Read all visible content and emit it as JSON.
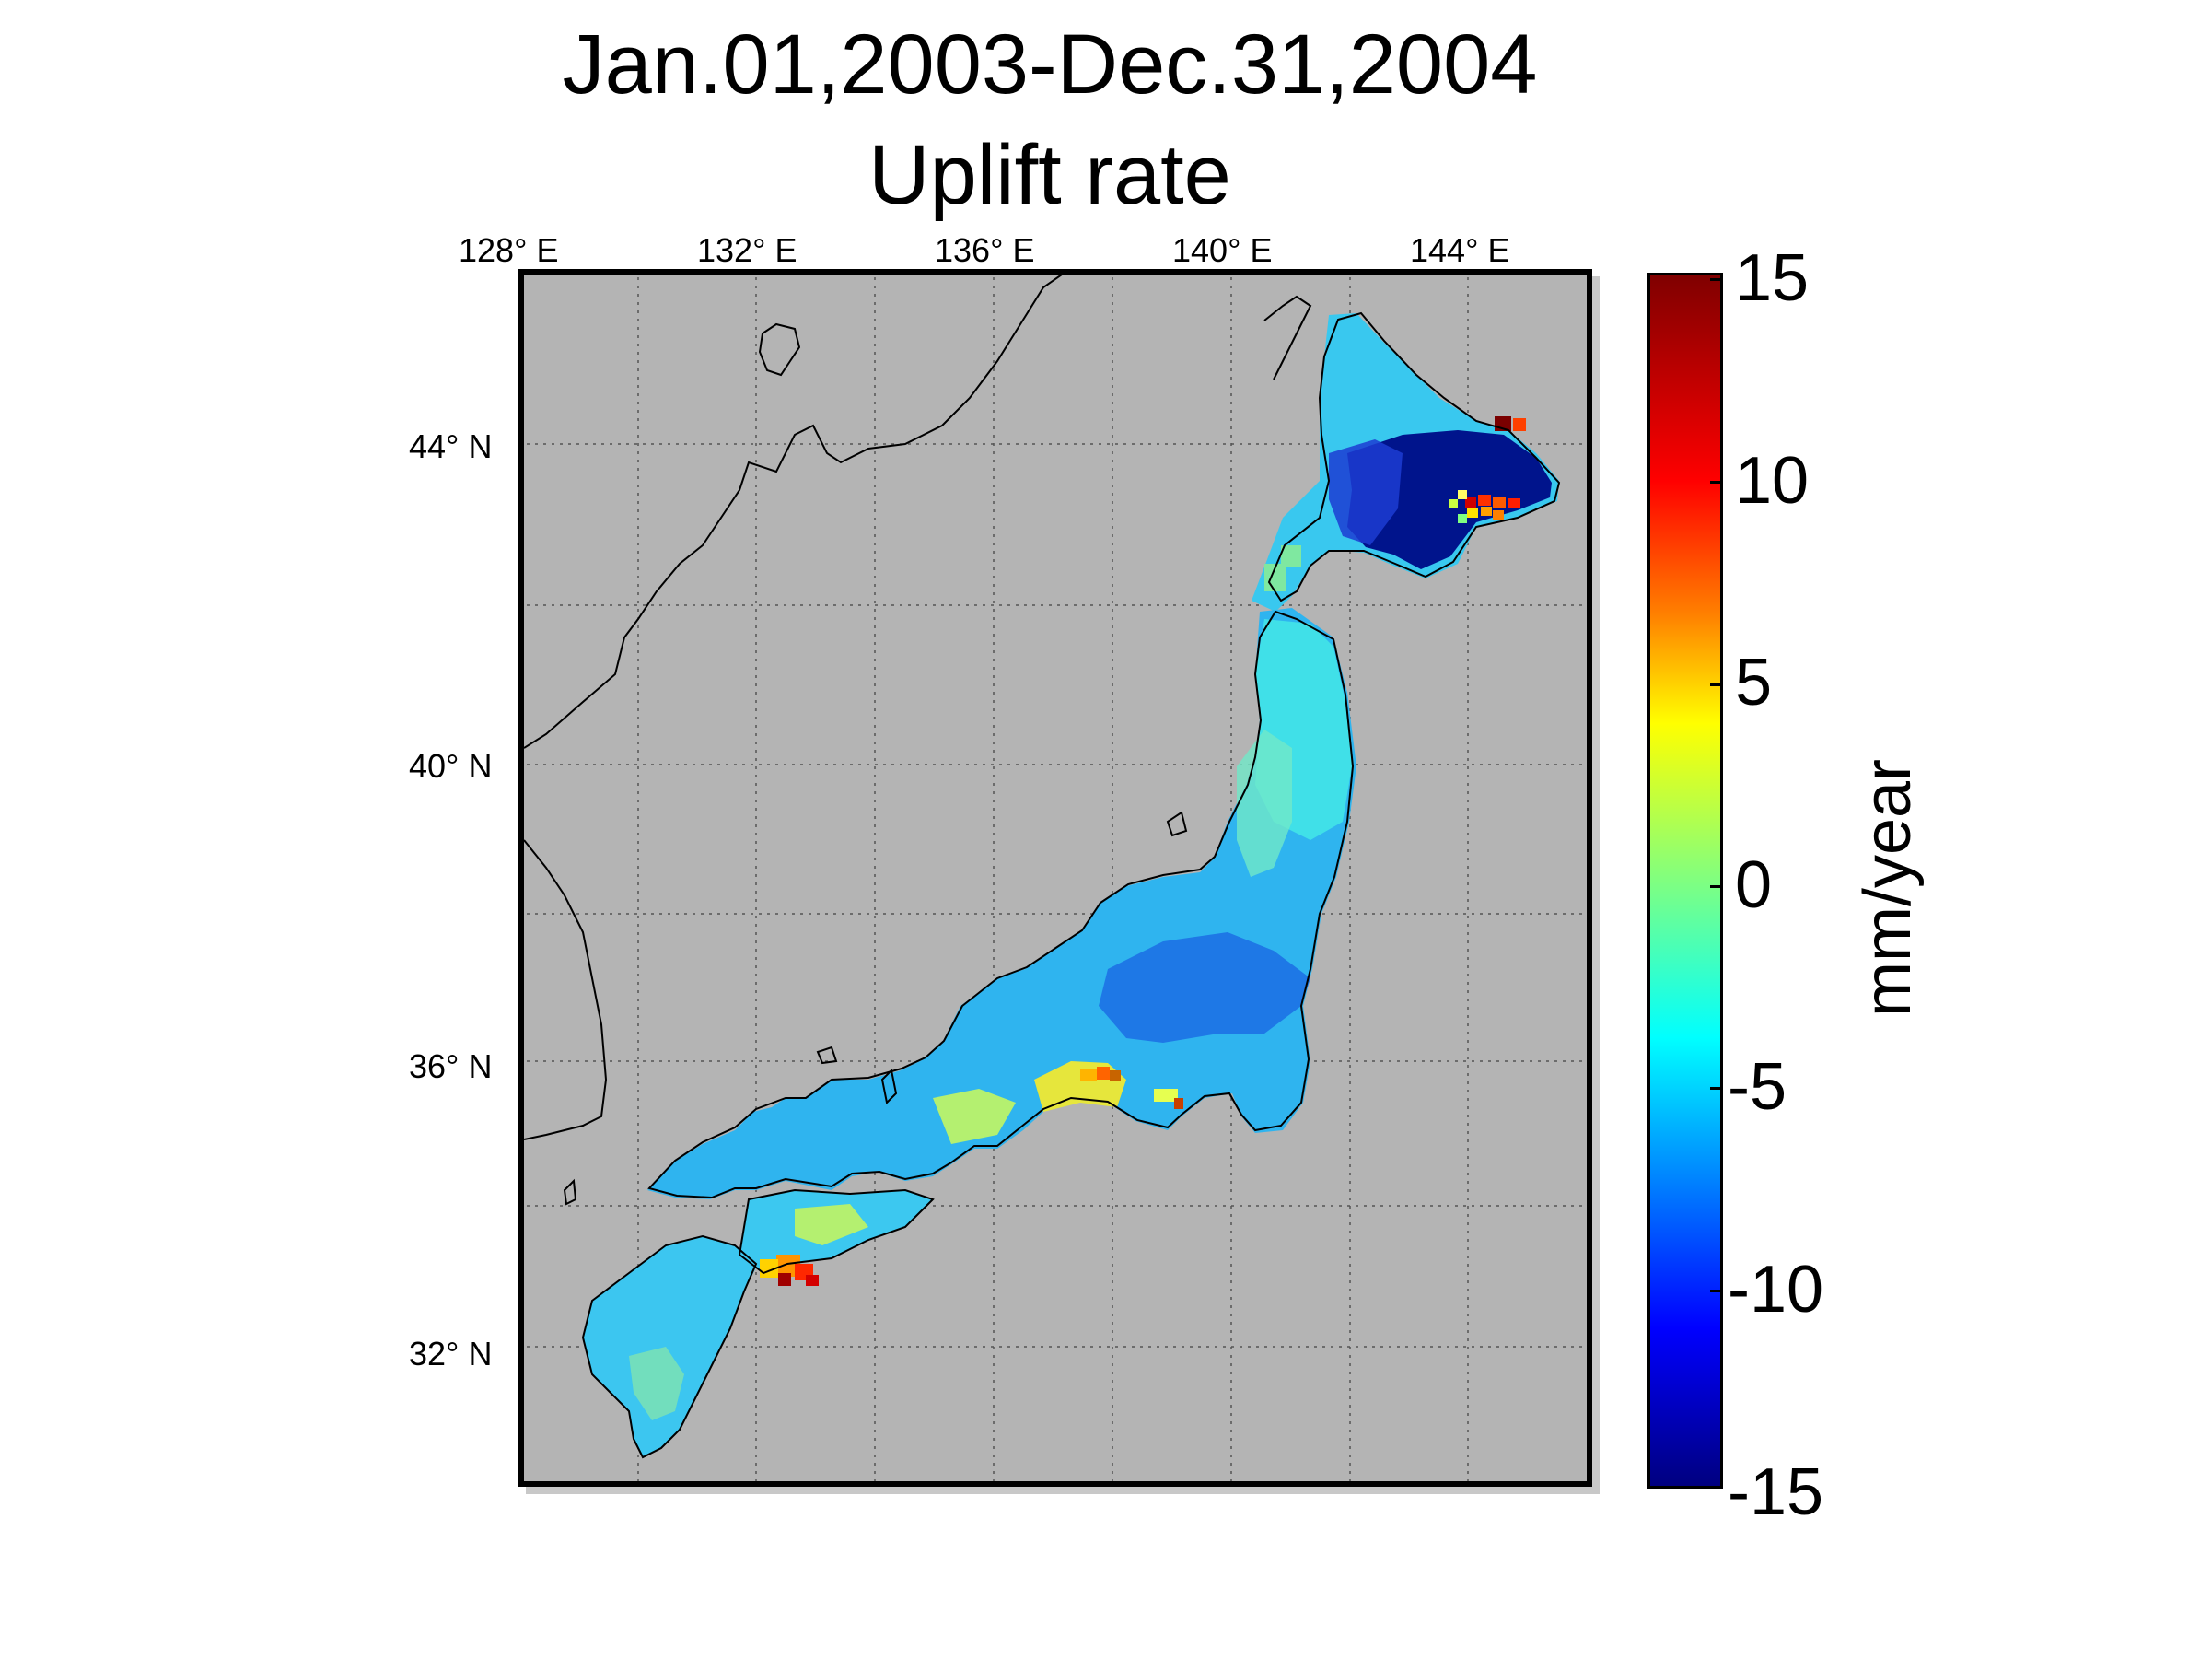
{
  "title": {
    "line1": "Jan.01,2003-Dec.31,2004",
    "line2": "Uplift rate"
  },
  "map": {
    "type": "geographic heat map",
    "region": "Japan",
    "background_color": "#b4b4b4",
    "coastline_color": "#000000",
    "grid": "dotted",
    "longitude_ticks": [
      "128° E",
      "132° E",
      "136° E",
      "140° E",
      "144° E"
    ],
    "latitude_ticks": [
      "44° N",
      "40° N",
      "36° N",
      "32° N"
    ]
  },
  "colorbar": {
    "label": "mm/year",
    "ticks": [
      "15",
      "10",
      "5",
      "0",
      "-5",
      "-10",
      "-15"
    ],
    "range": [
      -15,
      15
    ],
    "colormap": "jet"
  }
}
